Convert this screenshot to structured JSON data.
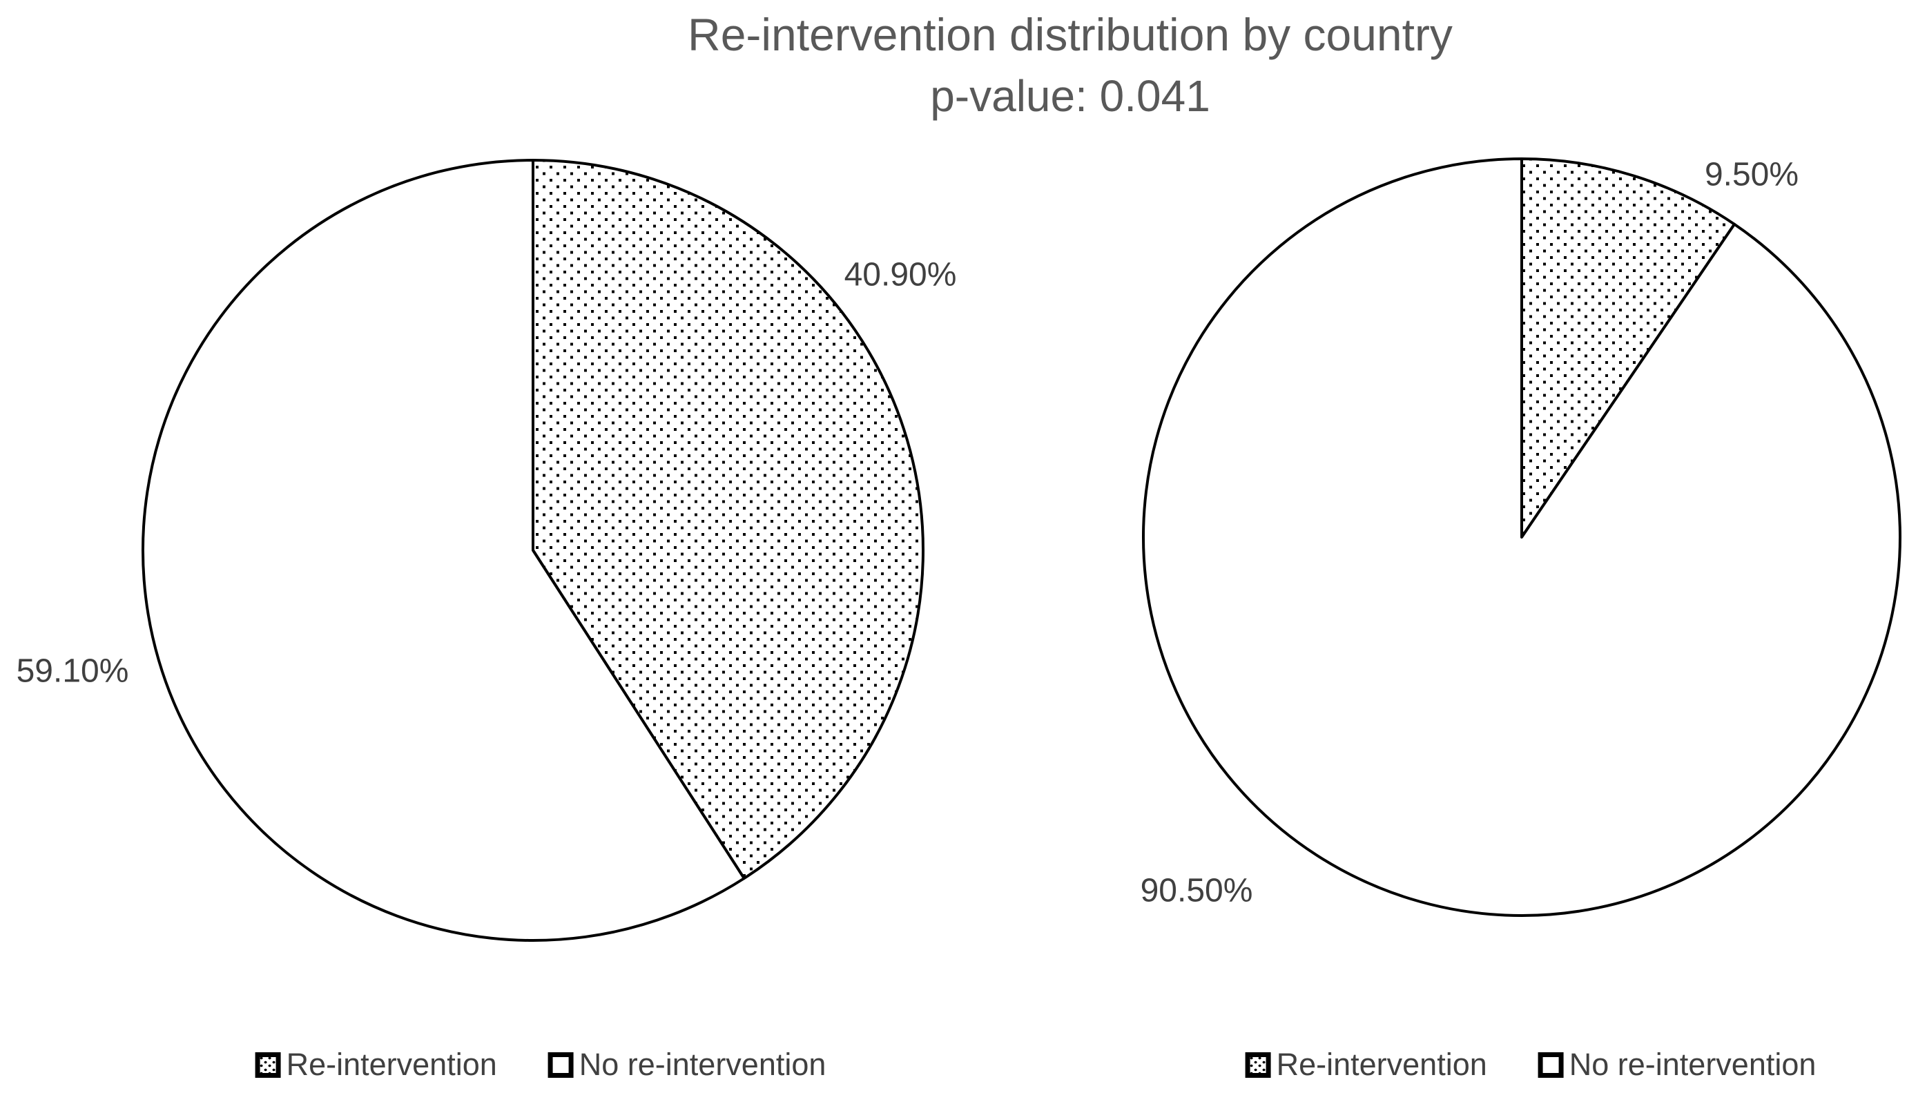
{
  "title": "Re-intervention distribution by country",
  "subtitle": "p-value: 0.041",
  "chart_data": {
    "type": "pie",
    "title": "Re-intervention distribution by country",
    "subtitle": "p-value: 0.041",
    "p_value": 0.041,
    "layout": "two pies side by side, slices start at 12 o'clock and run clockwise",
    "legend": {
      "position": "bottom",
      "items": [
        {
          "label": "Re-intervention",
          "fill": "dotted"
        },
        {
          "label": "No re-intervention",
          "fill": "white"
        }
      ]
    },
    "charts": {
      "left": {
        "slices": [
          {
            "label": "Re-intervention",
            "value": 40.9,
            "display": "40.90%",
            "fill": "dotted"
          },
          {
            "label": "No re-intervention",
            "value": 59.1,
            "display": "59.10%",
            "fill": "white"
          }
        ]
      },
      "right": {
        "slices": [
          {
            "label": "Re-intervention",
            "value": 9.5,
            "display": "9.50%",
            "fill": "dotted"
          },
          {
            "label": "No re-intervention",
            "value": 90.5,
            "display": "90.50%",
            "fill": "white"
          }
        ]
      }
    },
    "colors": {
      "stroke": "#000000",
      "title_text": "#595959",
      "label_text": "#404040",
      "background": "#ffffff",
      "slice_dotted_fill": "black dots on white",
      "slice_plain_fill": "#ffffff"
    }
  }
}
